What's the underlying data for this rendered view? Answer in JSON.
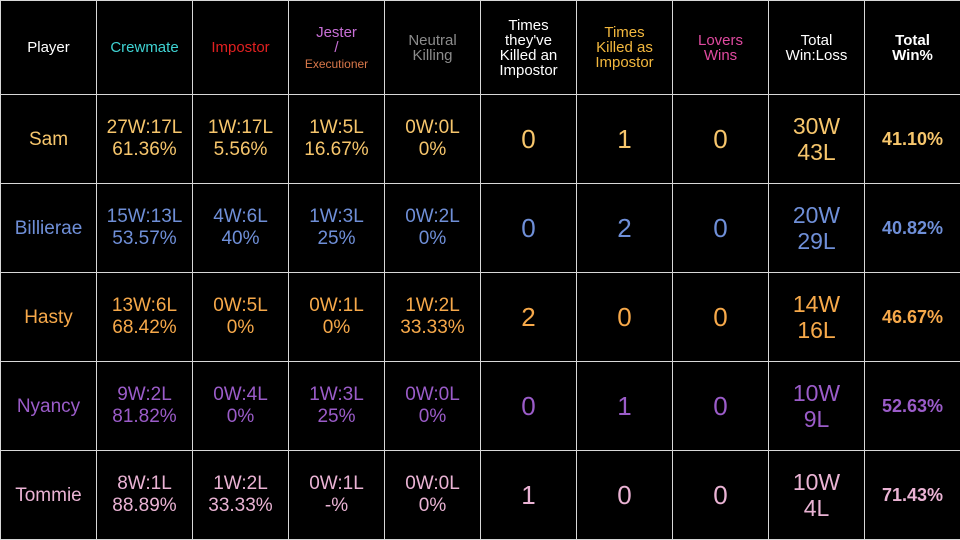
{
  "headers": [
    {
      "key": "player",
      "lines": [
        "Player"
      ],
      "color": "#ffffff"
    },
    {
      "key": "crewmate",
      "lines": [
        "Crewmate"
      ],
      "color": "#3fd3d3"
    },
    {
      "key": "impostor",
      "lines": [
        "Impostor"
      ],
      "color": "#e02020"
    },
    {
      "key": "jester",
      "lines": [
        "Jester",
        "/"
      ],
      "small": "Executioner",
      "color": "#c86fd6",
      "small_color": "#d9784a"
    },
    {
      "key": "neutral",
      "lines": [
        "Neutral",
        "Killing"
      ],
      "color": "#8c8c8c"
    },
    {
      "key": "killed_impostor",
      "lines": [
        "Times",
        "they've",
        "Killed an",
        "Impostor"
      ],
      "color": "#ffffff"
    },
    {
      "key": "killed_as_impostor",
      "lines": [
        "Times",
        "Killed as",
        "Impostor"
      ],
      "color": "#f3b83e"
    },
    {
      "key": "lovers",
      "lines": [
        "Lovers",
        "Wins"
      ],
      "color": "#e04aa0"
    },
    {
      "key": "total_wl",
      "lines": [
        "Total",
        "Win:Loss"
      ],
      "color": "#ffffff"
    },
    {
      "key": "total_pct",
      "lines": [
        "Total",
        "Win%"
      ],
      "color": "#ffffff",
      "bold": true
    }
  ],
  "rows": [
    {
      "color": "#f7c66c",
      "player": "Sam",
      "crewmate": [
        "27W:17L",
        "61.36%"
      ],
      "impostor": [
        "1W:17L",
        "5.56%"
      ],
      "jester": [
        "1W:5L",
        "16.67%"
      ],
      "neutral": [
        "0W:0L",
        "0%"
      ],
      "killed_impostor": "0",
      "killed_as_impostor": "1",
      "lovers": "0",
      "total_wl": [
        "30W",
        "43L"
      ],
      "total_pct": "41.10%"
    },
    {
      "color": "#6f8fd8",
      "player": "Billierae",
      "crewmate": [
        "15W:13L",
        "53.57%"
      ],
      "impostor": [
        "4W:6L",
        "40%"
      ],
      "jester": [
        "1W:3L",
        "25%"
      ],
      "neutral": [
        "0W:2L",
        "0%"
      ],
      "killed_impostor": "0",
      "killed_as_impostor": "2",
      "lovers": "0",
      "total_wl": [
        "20W",
        "29L"
      ],
      "total_pct": "40.82%"
    },
    {
      "color": "#f7a94a",
      "player": "Hasty",
      "crewmate": [
        "13W:6L",
        "68.42%"
      ],
      "impostor": [
        "0W:5L",
        "0%"
      ],
      "jester": [
        "0W:1L",
        "0%"
      ],
      "neutral": [
        "1W:2L",
        "33.33%"
      ],
      "killed_impostor": "2",
      "killed_as_impostor": "0",
      "lovers": "0",
      "total_wl": [
        "14W",
        "16L"
      ],
      "total_pct": "46.67%"
    },
    {
      "color": "#9b5cc9",
      "player": "Nyancy",
      "crewmate": [
        "9W:2L",
        "81.82%"
      ],
      "impostor": [
        "0W:4L",
        "0%"
      ],
      "jester": [
        "1W:3L",
        "25%"
      ],
      "neutral": [
        "0W:0L",
        "0%"
      ],
      "killed_impostor": "0",
      "killed_as_impostor": "1",
      "lovers": "0",
      "total_wl": [
        "10W",
        "9L"
      ],
      "total_pct": "52.63%"
    },
    {
      "color": "#eab3d4",
      "player": "Tommie",
      "crewmate": [
        "8W:1L",
        "88.89%"
      ],
      "impostor": [
        "1W:2L",
        "33.33%"
      ],
      "jester": [
        "0W:1L",
        "-%"
      ],
      "neutral": [
        "0W:0L",
        "0%"
      ],
      "killed_impostor": "1",
      "killed_as_impostor": "0",
      "lovers": "0",
      "total_wl": [
        "10W",
        "4L"
      ],
      "total_pct": "71.43%"
    }
  ]
}
